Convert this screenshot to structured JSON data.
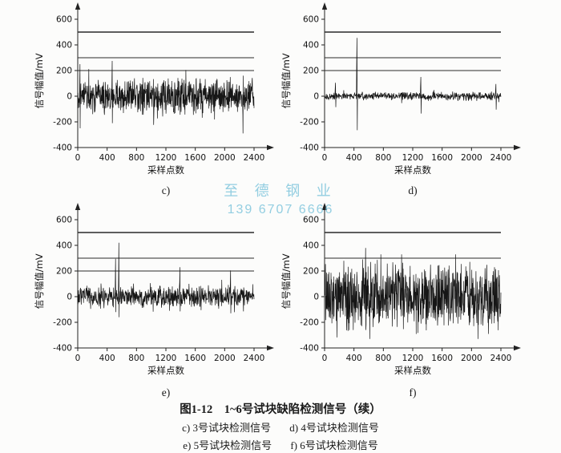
{
  "page": {
    "background": "#fcfcfb"
  },
  "watermark": {
    "line1": "至 德 钢 业",
    "line2": "139 6707 6666",
    "color": "#78c2db"
  },
  "caption": {
    "title": "图1-12　1~6号试块缺陷检测信号（续）",
    "items_row1": [
      "c) 3号试块检测信号",
      "d) 4号试块检测信号"
    ],
    "items_row2": [
      "e) 5号试块检测信号",
      "f) 6号试块检测信号"
    ]
  },
  "chart_data": [
    {
      "type": "line",
      "panel_label": "c)",
      "xlabel": "采样点数",
      "ylabel": "信号幅值/mV",
      "xlim": [
        0,
        2600
      ],
      "ylim": [
        -400,
        700
      ],
      "x_ticks": [
        0,
        400,
        800,
        1200,
        1600,
        2000,
        2400
      ],
      "y_ticks": [
        -400,
        -200,
        0,
        200,
        400,
        600
      ],
      "reference_lines_mV": [
        500,
        300,
        200
      ],
      "signal": {
        "seed": 11,
        "points": 800,
        "noise_peak_mV": 160,
        "clip_mV": 300,
        "spikes": [
          {
            "x": 30,
            "v1": 250,
            "v2": -250
          },
          {
            "x": 470,
            "v1": 275,
            "v2": -210
          },
          {
            "x": 2250,
            "v1": -290,
            "v2": 160
          }
        ]
      }
    },
    {
      "type": "line",
      "panel_label": "d)",
      "xlabel": "采样点数",
      "ylabel": "信号幅值/mV",
      "xlim": [
        0,
        2600
      ],
      "ylim": [
        -400,
        700
      ],
      "x_ticks": [
        0,
        400,
        800,
        1200,
        1600,
        2000,
        2400
      ],
      "y_ticks": [
        -400,
        -200,
        0,
        200,
        400,
        600
      ],
      "reference_lines_mV": [
        500,
        300,
        200
      ],
      "signal": {
        "seed": 22,
        "points": 600,
        "noise_peak_mV": 38,
        "clip_mV": 120,
        "spikes": [
          {
            "x": 150,
            "v1": 105,
            "v2": -85
          },
          {
            "x": 440,
            "v1": 455,
            "v2": -265
          },
          {
            "x": 1310,
            "v1": 150,
            "v2": -135
          },
          {
            "x": 2330,
            "v1": 95,
            "v2": -105
          }
        ]
      }
    },
    {
      "type": "line",
      "panel_label": "e)",
      "xlabel": "采样点数",
      "ylabel": "信号幅值/mV",
      "xlim": [
        0,
        2600
      ],
      "ylim": [
        -400,
        700
      ],
      "x_ticks": [
        0,
        400,
        800,
        1200,
        1600,
        2000,
        2400
      ],
      "y_ticks": [
        -400,
        -200,
        0,
        200,
        400,
        600
      ],
      "reference_lines_mV": [
        500,
        300,
        200
      ],
      "signal": {
        "seed": 33,
        "points": 700,
        "noise_peak_mV": 95,
        "clip_mV": 240,
        "spikes": [
          {
            "x": 515,
            "v1": 295,
            "v2": -120
          },
          {
            "x": 560,
            "v1": 420,
            "v2": -160
          },
          {
            "x": 1390,
            "v1": 230,
            "v2": -115
          },
          {
            "x": 2080,
            "v1": 205,
            "v2": -130
          }
        ]
      }
    },
    {
      "type": "line",
      "panel_label": "f)",
      "xlabel": "采样点数",
      "ylabel": "信号幅值/mV",
      "xlim": [
        0,
        2600
      ],
      "ylim": [
        -400,
        700
      ],
      "x_ticks": [
        0,
        400,
        800,
        1200,
        1600,
        2000,
        2400
      ],
      "y_ticks": [
        -400,
        -200,
        0,
        200,
        400,
        600
      ],
      "reference_lines_mV": [
        500,
        300
      ],
      "signal": {
        "seed": 44,
        "points": 800,
        "noise_peak_mV": 300,
        "clip_mV": 330,
        "spikes": [
          {
            "x": 560,
            "v1": 380,
            "v2": -260
          }
        ]
      }
    }
  ]
}
